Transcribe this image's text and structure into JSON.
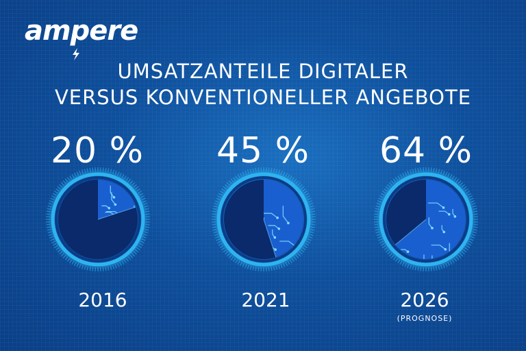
{
  "brand": {
    "name": "ampere"
  },
  "title": {
    "line1": "UMSATZANTEILE DIGITALER",
    "line2": "VERSUS KONVENTIONELLER ANGEBOTE"
  },
  "colors": {
    "background": "#0e4f9c",
    "ring": "#2fb4f0",
    "dial": "#0a2a6b",
    "segment": "#1a5fd0",
    "circuit": "#7fe0ff"
  },
  "chart_data": {
    "type": "pie",
    "unit": "%",
    "items": [
      {
        "year": "2016",
        "value": 20,
        "label": "20 %",
        "note": ""
      },
      {
        "year": "2021",
        "value": 45,
        "label": "45 %",
        "note": ""
      },
      {
        "year": "2026",
        "value": 64,
        "label": "64 %",
        "note": "(PROGNOSE)"
      }
    ]
  }
}
